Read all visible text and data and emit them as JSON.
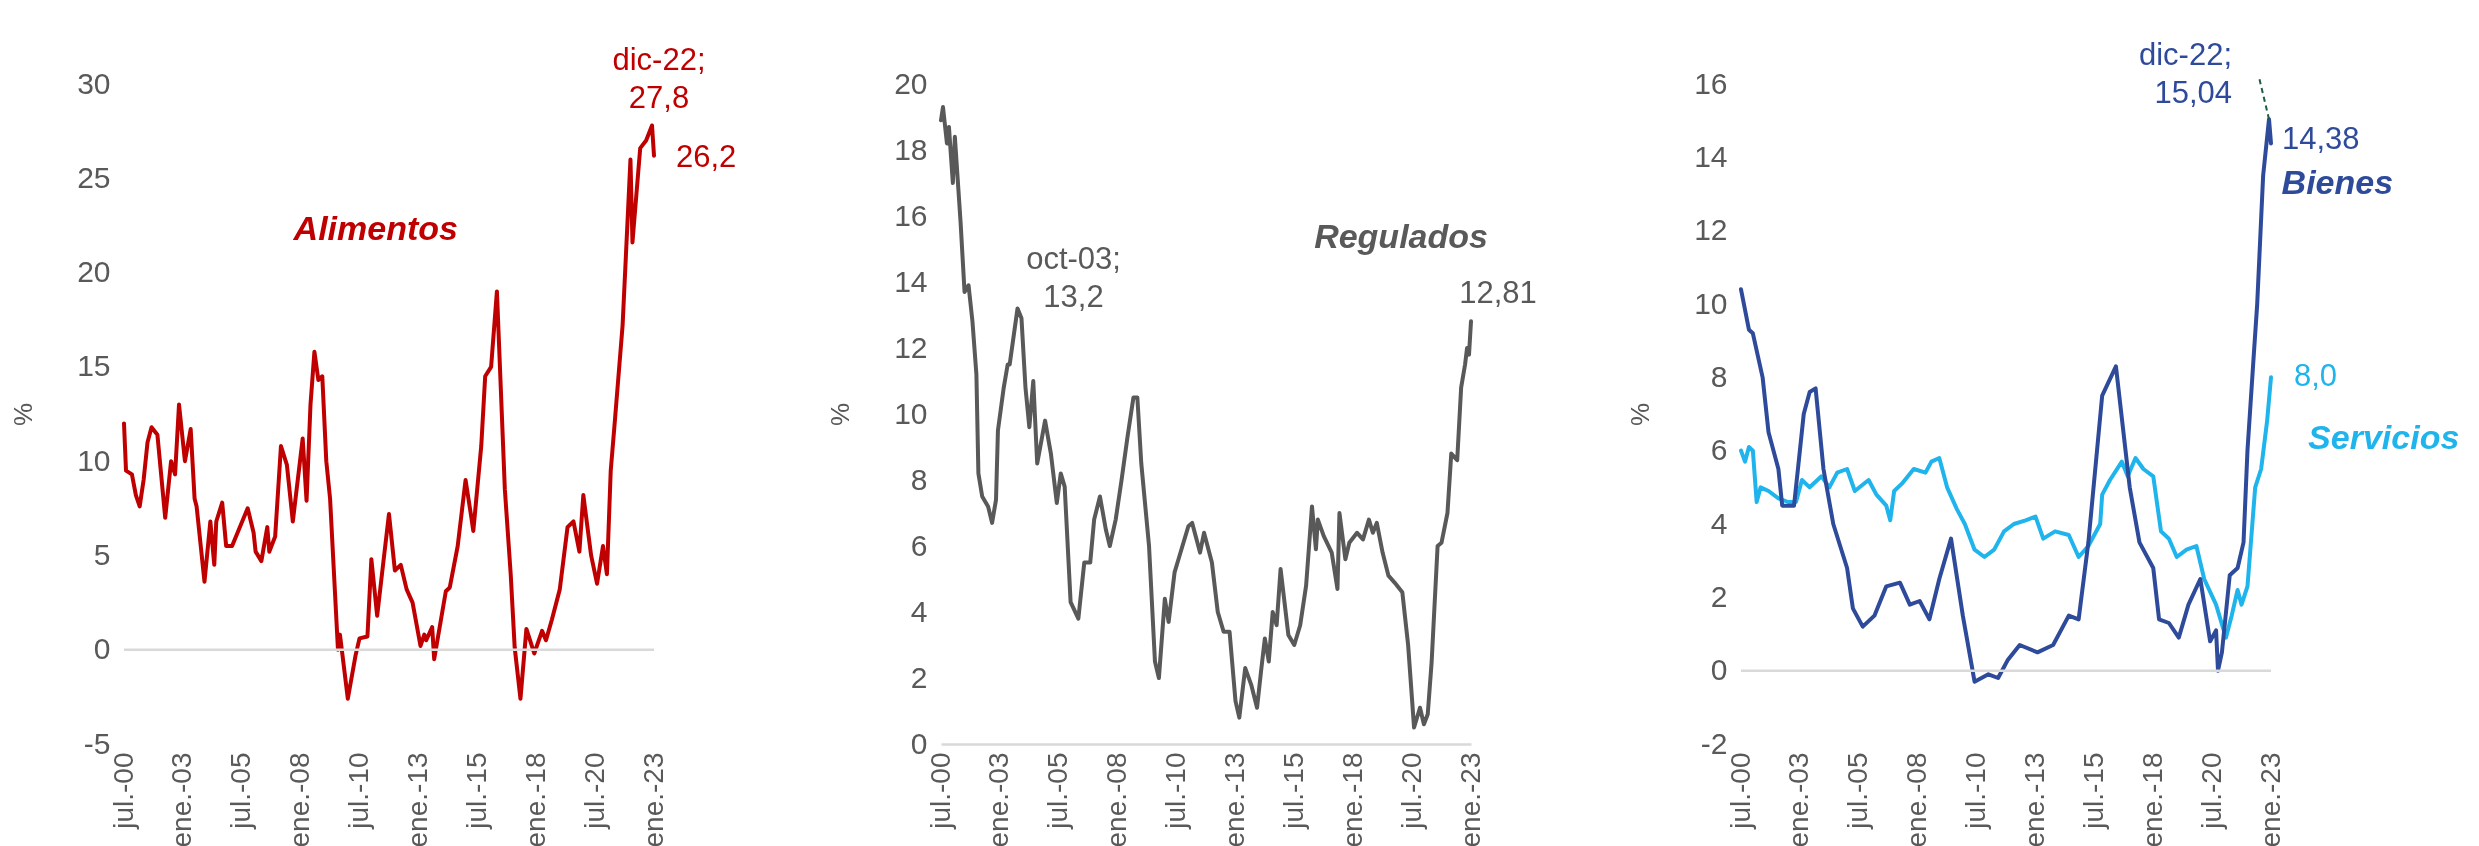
{
  "chart_data": [
    {
      "type": "line",
      "ylabel": "%",
      "xlim": [
        "2000-07",
        "2023-01"
      ],
      "ylim": [
        -5,
        30
      ],
      "yticks": [
        -5,
        0,
        5,
        10,
        15,
        20,
        25,
        30
      ],
      "xticks": [
        {
          "value": "2000-07",
          "label": "jul.-00"
        },
        {
          "value": "2003-01",
          "label": "ene.-03"
        },
        {
          "value": "2005-07",
          "label": "jul.-05"
        },
        {
          "value": "2008-01",
          "label": "ene.-08"
        },
        {
          "value": "2010-07",
          "label": "jul.-10"
        },
        {
          "value": "2013-01",
          "label": "ene.-13"
        },
        {
          "value": "2015-07",
          "label": "jul.-15"
        },
        {
          "value": "2018-01",
          "label": "ene.-18"
        },
        {
          "value": "2020-07",
          "label": "jul.-20"
        },
        {
          "value": "2023-01",
          "label": "ene.-23"
        }
      ],
      "ref_lines": [
        {
          "axis": "y",
          "value": 0,
          "color": "#d9d9d9"
        }
      ],
      "series": [
        {
          "name": "Alimentos",
          "color": "#c00000",
          "x": [
            "2000-07",
            "2000-08",
            "2000-11",
            "2001-01",
            "2001-03",
            "2001-05",
            "2001-07",
            "2001-09",
            "2001-12",
            "2002-04",
            "2002-07",
            "2002-09",
            "2002-11",
            "2003-02",
            "2003-05",
            "2003-07",
            "2003-08",
            "2003-12",
            "2004-03",
            "2004-05",
            "2004-06",
            "2004-09",
            "2004-11",
            "2005-02",
            "2005-06",
            "2005-10",
            "2006-01",
            "2006-02",
            "2006-05",
            "2006-08",
            "2006-09",
            "2006-12",
            "2007-03",
            "2007-06",
            "2007-09",
            "2008-02",
            "2008-04",
            "2008-06",
            "2008-08",
            "2008-10",
            "2008-12",
            "2009-02",
            "2009-04",
            "2009-08",
            "2009-09",
            "2010-01",
            "2010-05",
            "2010-07",
            "2010-11",
            "2011-01",
            "2011-04",
            "2011-07",
            "2011-10",
            "2012-01",
            "2012-04",
            "2012-07",
            "2012-10",
            "2013-02",
            "2013-04",
            "2013-05",
            "2013-08",
            "2013-09",
            "2014-03",
            "2014-05",
            "2014-09",
            "2015-01",
            "2015-04",
            "2015-05",
            "2015-09",
            "2015-11",
            "2016-02",
            "2016-05",
            "2016-09",
            "2016-12",
            "2017-02",
            "2017-05",
            "2017-08",
            "2017-12",
            "2018-04",
            "2018-06",
            "2018-09",
            "2019-01",
            "2019-05",
            "2019-08",
            "2019-11",
            "2020-01",
            "2020-05",
            "2020-08",
            "2020-11",
            "2021-01",
            "2021-03",
            "2021-05",
            "2021-09",
            "2022-01",
            "2022-02",
            "2022-06",
            "2022-09",
            "2022-12",
            "2023-01"
          ],
          "values": [
            12,
            9.5,
            9.3,
            8.2,
            7.6,
            9,
            11,
            11.8,
            11.4,
            7,
            10,
            9.3,
            13,
            10,
            11.7,
            8,
            7.6,
            3.6,
            6.8,
            4.5,
            6.8,
            7.8,
            5.5,
            5.5,
            6.5,
            7.5,
            6.2,
            5.2,
            4.7,
            6.5,
            5.2,
            6,
            10.8,
            9.8,
            6.8,
            11.2,
            7.9,
            13,
            15.8,
            14.3,
            14.5,
            10,
            8,
            0,
            0.8,
            -2.6,
            -0.3,
            0.6,
            0.7,
            4.8,
            1.8,
            4.5,
            7.2,
            4.2,
            4.5,
            3.2,
            2.5,
            0.2,
            0.8,
            0.5,
            1.2,
            -0.5,
            3.1,
            3.3,
            5.5,
            9,
            7,
            6.3,
            10.8,
            14.5,
            15,
            19,
            8.5,
            4,
            0.1,
            -2.6,
            1.1,
            -0.2,
            1,
            0.5,
            1.6,
            3.2,
            6.5,
            6.8,
            5.2,
            8.2,
            5,
            3.5,
            5.5,
            4,
            9.5,
            12,
            17.2,
            26,
            21.6,
            26.6,
            27,
            27.8,
            26.2
          ]
        }
      ],
      "annotations": [
        {
          "text": "dic-22;\n27,8",
          "x": "2022-12",
          "y": 27.8
        },
        {
          "text": "26,2",
          "x": "2023-01",
          "y": 26.2
        }
      ]
    },
    {
      "type": "line",
      "ylabel": "%",
      "xlim": [
        "2000-07",
        "2023-01"
      ],
      "ylim": [
        0,
        20
      ],
      "yticks": [
        0,
        2,
        4,
        6,
        8,
        10,
        12,
        14,
        16,
        18,
        20
      ],
      "xticks": [
        {
          "value": "2000-07",
          "label": "jul.-00"
        },
        {
          "value": "2003-01",
          "label": "ene.-03"
        },
        {
          "value": "2005-07",
          "label": "jul.-05"
        },
        {
          "value": "2008-01",
          "label": "ene.-08"
        },
        {
          "value": "2010-07",
          "label": "jul.-10"
        },
        {
          "value": "2013-01",
          "label": "ene.-13"
        },
        {
          "value": "2015-07",
          "label": "jul.-15"
        },
        {
          "value": "2018-01",
          "label": "ene.-18"
        },
        {
          "value": "2020-07",
          "label": "jul.-20"
        },
        {
          "value": "2023-01",
          "label": "ene.-23"
        }
      ],
      "series": [
        {
          "name": "Regulados",
          "color": "#595959",
          "x": [
            "2000-07",
            "2000-08",
            "2000-10",
            "2000-11",
            "2001-01",
            "2001-02",
            "2001-05",
            "2001-07",
            "2001-09",
            "2001-11",
            "2002-01",
            "2002-02",
            "2002-04",
            "2002-07",
            "2002-09",
            "2002-11",
            "2002-12",
            "2003-03",
            "2003-05",
            "2003-06",
            "2003-10",
            "2003-12",
            "2004-02",
            "2004-04",
            "2004-06",
            "2004-08",
            "2004-12",
            "2005-03",
            "2005-06",
            "2005-08",
            "2005-10",
            "2006-01",
            "2006-05",
            "2006-08",
            "2006-11",
            "2007-01",
            "2007-04",
            "2007-07",
            "2007-09",
            "2007-12",
            "2008-03",
            "2008-06",
            "2008-09",
            "2008-11",
            "2009-01",
            "2009-05",
            "2009-08",
            "2009-10",
            "2010-01",
            "2010-03",
            "2010-06",
            "2010-08",
            "2011-01",
            "2011-03",
            "2011-07",
            "2011-09",
            "2012-01",
            "2012-04",
            "2012-07",
            "2012-10",
            "2013-01",
            "2013-03",
            "2013-06",
            "2013-09",
            "2013-12",
            "2014-02",
            "2014-04",
            "2014-06",
            "2014-08",
            "2014-10",
            "2014-12",
            "2015-04",
            "2015-07",
            "2015-10",
            "2016-01",
            "2016-04",
            "2016-06",
            "2016-07",
            "2016-10",
            "2017-02",
            "2017-05",
            "2017-06",
            "2017-09",
            "2017-11",
            "2018-03",
            "2018-06",
            "2018-09",
            "2018-11",
            "2019-01",
            "2019-04",
            "2019-07",
            "2019-10",
            "2020-02",
            "2020-05",
            "2020-08",
            "2020-11",
            "2021-01",
            "2021-03",
            "2021-05",
            "2021-08",
            "2021-10",
            "2022-01",
            "2022-03",
            "2022-06",
            "2022-08",
            "2022-10",
            "2022-11",
            "2022-12",
            "2023-01"
          ],
          "values": [
            18.9,
            19.3,
            18.2,
            18.7,
            17,
            18.4,
            15.8,
            13.7,
            13.9,
            12.8,
            11.2,
            8.2,
            7.5,
            7.2,
            6.7,
            7.4,
            9.5,
            10.8,
            11.5,
            11.5,
            13.2,
            12.9,
            10.8,
            9.6,
            11,
            8.5,
            9.8,
            8.8,
            7.3,
            8.2,
            7.8,
            4.3,
            3.8,
            5.5,
            5.5,
            6.8,
            7.5,
            6.5,
            6,
            6.8,
            8,
            9.3,
            10.5,
            10.5,
            8.5,
            6,
            2.5,
            2,
            4.4,
            3.7,
            5.2,
            5.6,
            6.6,
            6.7,
            5.8,
            6.4,
            5.5,
            4,
            3.4,
            3.4,
            1.3,
            0.8,
            2.3,
            1.8,
            1.1,
            2.2,
            3.2,
            2.5,
            4,
            3.6,
            5.3,
            3.3,
            3,
            3.6,
            4.8,
            7.2,
            5.9,
            6.8,
            6.3,
            5.8,
            4.7,
            7,
            5.6,
            6.1,
            6.4,
            6.2,
            6.8,
            6.4,
            6.7,
            5.8,
            5.1,
            4.9,
            4.6,
            3,
            0.5,
            1.1,
            0.6,
            0.9,
            2.5,
            6,
            6.1,
            7,
            8.8,
            8.6,
            10.8,
            11.5,
            12,
            11.8,
            12.81
          ]
        }
      ],
      "annotations": [
        {
          "text": "oct-03;\n13,2",
          "x": "2003-10",
          "y": 13.2
        },
        {
          "text": "12,81",
          "x": "2023-01",
          "y": 12.81
        }
      ]
    },
    {
      "type": "line",
      "ylabel": "%",
      "xlim": [
        "2000-07",
        "2023-01"
      ],
      "ylim": [
        -2,
        16
      ],
      "yticks": [
        -2,
        0,
        2,
        4,
        6,
        8,
        10,
        12,
        14,
        16
      ],
      "xticks": [
        {
          "value": "2000-07",
          "label": "jul.-00"
        },
        {
          "value": "2003-01",
          "label": "ene.-03"
        },
        {
          "value": "2005-07",
          "label": "jul.-05"
        },
        {
          "value": "2008-01",
          "label": "ene.-08"
        },
        {
          "value": "2010-07",
          "label": "jul.-10"
        },
        {
          "value": "2013-01",
          "label": "ene.-13"
        },
        {
          "value": "2015-07",
          "label": "jul.-15"
        },
        {
          "value": "2018-01",
          "label": "ene.-18"
        },
        {
          "value": "2020-07",
          "label": "jul.-20"
        },
        {
          "value": "2023-01",
          "label": "ene.-23"
        }
      ],
      "ref_lines": [
        {
          "axis": "y",
          "value": 0,
          "color": "#d9d9d9"
        }
      ],
      "series": [
        {
          "name": "Servicios",
          "color": "#1fb4ec",
          "x": [
            "2000-07",
            "2000-09",
            "2000-11",
            "2001-01",
            "2001-03",
            "2001-05",
            "2001-09",
            "2002-02",
            "2002-07",
            "2002-11",
            "2003-02",
            "2003-06",
            "2003-12",
            "2004-04",
            "2004-08",
            "2005-01",
            "2005-05",
            "2005-12",
            "2006-04",
            "2006-09",
            "2006-11",
            "2007-01",
            "2007-05",
            "2007-11",
            "2008-05",
            "2008-08",
            "2008-12",
            "2009-04",
            "2009-09",
            "2010-01",
            "2010-06",
            "2010-11",
            "2011-04",
            "2011-09",
            "2012-02",
            "2012-08",
            "2013-01",
            "2013-05",
            "2013-11",
            "2014-06",
            "2014-11",
            "2015-04",
            "2015-10",
            "2015-11",
            "2016-03",
            "2016-09",
            "2016-12",
            "2017-04",
            "2017-08",
            "2018-01",
            "2018-05",
            "2018-09",
            "2019-01",
            "2019-06",
            "2019-11",
            "2020-03",
            "2020-09",
            "2021-02",
            "2021-05",
            "2021-08",
            "2021-10",
            "2022-01",
            "2022-05",
            "2022-08",
            "2022-11",
            "2023-01"
          ],
          "values": [
            6,
            5.7,
            6.1,
            6,
            4.6,
            5,
            4.9,
            4.7,
            4.6,
            4.6,
            5.2,
            5,
            5.3,
            5,
            5.4,
            5.5,
            4.9,
            5.2,
            4.8,
            4.5,
            4.1,
            4.9,
            5.1,
            5.5,
            5.4,
            5.7,
            5.8,
            5,
            4.4,
            4,
            3.3,
            3.1,
            3.3,
            3.8,
            4,
            4.1,
            4.2,
            3.6,
            3.8,
            3.7,
            3.1,
            3.4,
            4,
            4.8,
            5.2,
            5.7,
            5.3,
            5.8,
            5.5,
            5.3,
            3.8,
            3.6,
            3.1,
            3.3,
            3.4,
            2.5,
            1.8,
            0.9,
            1.5,
            2.2,
            1.8,
            2.3,
            5,
            5.5,
            6.8,
            8
          ]
        },
        {
          "name": "Bienes",
          "color": "#2e4a9a",
          "x": [
            "2000-07",
            "2000-11",
            "2001-01",
            "2001-06",
            "2001-09",
            "2002-02",
            "2002-04",
            "2002-10",
            "2002-12",
            "2003-03",
            "2003-06",
            "2003-09",
            "2004-01",
            "2004-06",
            "2005-01",
            "2005-04",
            "2005-09",
            "2006-03",
            "2006-09",
            "2007-04",
            "2007-09",
            "2008-02",
            "2008-07",
            "2008-12",
            "2009-06",
            "2009-12",
            "2010-06",
            "2011-01",
            "2011-06",
            "2011-11",
            "2012-05",
            "2013-02",
            "2013-10",
            "2014-06",
            "2014-11",
            "2015-04",
            "2015-11",
            "2016-06",
            "2017-01",
            "2017-06",
            "2018-01",
            "2018-04",
            "2018-09",
            "2019-02",
            "2019-07",
            "2020-01",
            "2020-06",
            "2020-09",
            "2020-10",
            "2020-12",
            "2021-04",
            "2021-08",
            "2021-11",
            "2022-01",
            "2022-04",
            "2022-06",
            "2022-09",
            "2022-12",
            "2023-01"
          ],
          "values": [
            10.4,
            9.3,
            9.2,
            8,
            6.5,
            5.5,
            4.5,
            4.5,
            5.5,
            7,
            7.6,
            7.7,
            5.5,
            4,
            2.8,
            1.7,
            1.2,
            1.5,
            2.3,
            2.4,
            1.8,
            1.9,
            1.4,
            2.5,
            3.6,
            1.5,
            -0.3,
            -0.1,
            -0.2,
            0.3,
            0.7,
            0.5,
            0.7,
            1.5,
            1.4,
            3.5,
            7.5,
            8.3,
            5,
            3.5,
            2.8,
            1.4,
            1.3,
            0.9,
            1.8,
            2.5,
            0.8,
            1.1,
            0,
            0.5,
            2.6,
            2.8,
            3.5,
            6,
            8.4,
            10,
            13.5,
            15.04,
            14.38
          ]
        }
      ],
      "annotations": [
        {
          "text": "dic-22;\n15,04",
          "x": "2022-12",
          "y": 15.04
        },
        {
          "text": "14,38",
          "x": "2023-01",
          "y": 14.38
        },
        {
          "text": "8,0",
          "x": "2023-01",
          "y": 8
        }
      ]
    }
  ]
}
